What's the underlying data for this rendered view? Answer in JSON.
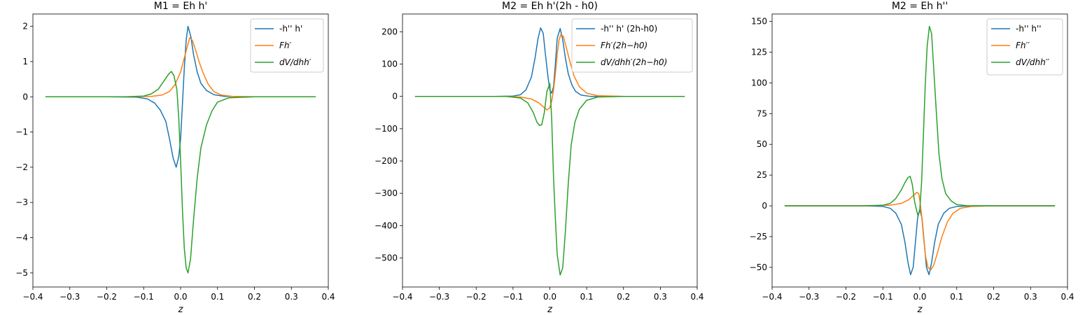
{
  "chart_data": [
    {
      "type": "line",
      "title": "M1 = Eh h'",
      "xlabel": "z",
      "ylabel": "",
      "xlim": [
        -0.4,
        0.4
      ],
      "ylim": [
        -5.4,
        2.35
      ],
      "xticks": [
        -0.4,
        -0.3,
        -0.2,
        -0.1,
        0.0,
        0.1,
        0.2,
        0.3,
        0.4
      ],
      "xtick_labels": [
        "−0.4",
        "−0.3",
        "−0.2",
        "−0.1",
        "0.0",
        "0.1",
        "0.2",
        "0.3",
        "0.4"
      ],
      "yticks": [
        -5,
        -4,
        -3,
        -2,
        -1,
        0,
        1,
        2
      ],
      "ytick_labels": [
        "−5",
        "−4",
        "−3",
        "−2",
        "−1",
        "0",
        "1",
        "2"
      ],
      "legend": "top-right",
      "grid": false,
      "series": [
        {
          "name": "-h'' h'",
          "color": "#1f77b4",
          "points": [
            [
              -0.366,
              0
            ],
            [
              -0.2,
              0
            ],
            [
              -0.12,
              -0.01
            ],
            [
              -0.09,
              -0.06
            ],
            [
              -0.07,
              -0.18
            ],
            [
              -0.055,
              -0.38
            ],
            [
              -0.04,
              -0.7
            ],
            [
              -0.03,
              -1.2
            ],
            [
              -0.02,
              -1.75
            ],
            [
              -0.012,
              -2.0
            ],
            [
              -0.005,
              -1.7
            ],
            [
              0.0,
              -1.2
            ],
            [
              0.005,
              -0.2
            ],
            [
              0.01,
              0.8
            ],
            [
              0.015,
              1.6
            ],
            [
              0.02,
              2.0
            ],
            [
              0.028,
              1.7
            ],
            [
              0.035,
              1.2
            ],
            [
              0.045,
              0.7
            ],
            [
              0.055,
              0.38
            ],
            [
              0.07,
              0.18
            ],
            [
              0.09,
              0.06
            ],
            [
              0.12,
              0.01
            ],
            [
              0.2,
              0
            ],
            [
              0.366,
              0
            ]
          ]
        },
        {
          "name": "Fh′",
          "color": "#ff7f0e",
          "points": [
            [
              -0.366,
              0
            ],
            [
              -0.15,
              0
            ],
            [
              -0.08,
              0.01
            ],
            [
              -0.05,
              0.05
            ],
            [
              -0.03,
              0.15
            ],
            [
              -0.015,
              0.35
            ],
            [
              0.0,
              0.7
            ],
            [
              0.01,
              1.1
            ],
            [
              0.02,
              1.5
            ],
            [
              0.025,
              1.68
            ],
            [
              0.032,
              1.6
            ],
            [
              0.04,
              1.35
            ],
            [
              0.05,
              1.0
            ],
            [
              0.06,
              0.7
            ],
            [
              0.075,
              0.35
            ],
            [
              0.09,
              0.15
            ],
            [
              0.11,
              0.05
            ],
            [
              0.14,
              0.01
            ],
            [
              0.2,
              0
            ],
            [
              0.366,
              0
            ]
          ]
        },
        {
          "name": "dV/dhh′",
          "color": "#2ca02c",
          "points": [
            [
              -0.366,
              0
            ],
            [
              -0.15,
              0
            ],
            [
              -0.1,
              0.02
            ],
            [
              -0.08,
              0.08
            ],
            [
              -0.06,
              0.22
            ],
            [
              -0.045,
              0.45
            ],
            [
              -0.032,
              0.65
            ],
            [
              -0.025,
              0.72
            ],
            [
              -0.018,
              0.6
            ],
            [
              -0.01,
              0.2
            ],
            [
              -0.005,
              -0.6
            ],
            [
              0.0,
              -1.8
            ],
            [
              0.005,
              -3.2
            ],
            [
              0.01,
              -4.3
            ],
            [
              0.015,
              -4.85
            ],
            [
              0.02,
              -5.0
            ],
            [
              0.027,
              -4.6
            ],
            [
              0.035,
              -3.5
            ],
            [
              0.045,
              -2.3
            ],
            [
              0.055,
              -1.45
            ],
            [
              0.07,
              -0.8
            ],
            [
              0.085,
              -0.4
            ],
            [
              0.1,
              -0.15
            ],
            [
              0.13,
              -0.03
            ],
            [
              0.2,
              0
            ],
            [
              0.366,
              0
            ]
          ]
        }
      ]
    },
    {
      "type": "line",
      "title": "M2 = Eh h'(2h - h0)",
      "xlabel": "z",
      "ylabel": "",
      "xlim": [
        -0.4,
        0.4
      ],
      "ylim": [
        -590,
        255
      ],
      "xticks": [
        -0.4,
        -0.3,
        -0.2,
        -0.1,
        0.0,
        0.1,
        0.2,
        0.3,
        0.4
      ],
      "xtick_labels": [
        "−0.4",
        "−0.3",
        "−0.2",
        "−0.1",
        "0.0",
        "0.1",
        "0.2",
        "0.3",
        "0.4"
      ],
      "yticks": [
        -500,
        -400,
        -300,
        -200,
        -100,
        0,
        100,
        200
      ],
      "ytick_labels": [
        "−500",
        "−400",
        "−300",
        "−200",
        "−100",
        "0",
        "100",
        "200"
      ],
      "legend": "top-right",
      "grid": false,
      "series": [
        {
          "name": "-h'' h' (2h-h0)",
          "color": "#1f77b4",
          "points": [
            [
              -0.366,
              0
            ],
            [
              -0.15,
              0
            ],
            [
              -0.1,
              1
            ],
            [
              -0.08,
              5
            ],
            [
              -0.065,
              20
            ],
            [
              -0.05,
              60
            ],
            [
              -0.04,
              120
            ],
            [
              -0.032,
              180
            ],
            [
              -0.025,
              212
            ],
            [
              -0.018,
              195
            ],
            [
              -0.012,
              130
            ],
            [
              -0.005,
              60
            ],
            [
              0.0,
              20
            ],
            [
              0.005,
              10
            ],
            [
              0.01,
              30
            ],
            [
              0.015,
              100
            ],
            [
              0.02,
              180
            ],
            [
              0.028,
              210
            ],
            [
              0.035,
              175
            ],
            [
              0.042,
              120
            ],
            [
              0.05,
              70
            ],
            [
              0.06,
              35
            ],
            [
              0.07,
              15
            ],
            [
              0.085,
              4
            ],
            [
              0.11,
              0
            ],
            [
              0.366,
              0
            ]
          ]
        },
        {
          "name": "Fh′(2h−h0)",
          "color": "#ff7f0e",
          "points": [
            [
              -0.366,
              0
            ],
            [
              -0.12,
              0
            ],
            [
              -0.08,
              -2
            ],
            [
              -0.05,
              -8
            ],
            [
              -0.03,
              -20
            ],
            [
              -0.015,
              -35
            ],
            [
              -0.008,
              -42
            ],
            [
              0.0,
              -35
            ],
            [
              0.005,
              -15
            ],
            [
              0.01,
              20
            ],
            [
              0.015,
              70
            ],
            [
              0.02,
              130
            ],
            [
              0.025,
              175
            ],
            [
              0.03,
              192
            ],
            [
              0.037,
              185
            ],
            [
              0.045,
              150
            ],
            [
              0.055,
              105
            ],
            [
              0.065,
              65
            ],
            [
              0.08,
              30
            ],
            [
              0.1,
              10
            ],
            [
              0.13,
              2
            ],
            [
              0.2,
              0
            ],
            [
              0.366,
              0
            ]
          ]
        },
        {
          "name": "dV/dhh′(2h−h0)",
          "color": "#2ca02c",
          "points": [
            [
              -0.366,
              0
            ],
            [
              -0.12,
              0
            ],
            [
              -0.08,
              -5
            ],
            [
              -0.06,
              -20
            ],
            [
              -0.045,
              -50
            ],
            [
              -0.035,
              -80
            ],
            [
              -0.028,
              -90
            ],
            [
              -0.022,
              -88
            ],
            [
              -0.015,
              -50
            ],
            [
              -0.008,
              15
            ],
            [
              0.0,
              40
            ],
            [
              0.005,
              -70
            ],
            [
              0.01,
              -250
            ],
            [
              0.015,
              -380
            ],
            [
              0.02,
              -490
            ],
            [
              0.028,
              -553
            ],
            [
              0.035,
              -530
            ],
            [
              0.042,
              -420
            ],
            [
              0.05,
              -270
            ],
            [
              0.058,
              -150
            ],
            [
              0.068,
              -80
            ],
            [
              0.08,
              -40
            ],
            [
              0.1,
              -12
            ],
            [
              0.13,
              -2
            ],
            [
              0.2,
              0
            ],
            [
              0.366,
              0
            ]
          ]
        }
      ]
    },
    {
      "type": "line",
      "title": "M2 = Eh h''",
      "xlabel": "z",
      "ylabel": "",
      "xlim": [
        -0.4,
        0.4
      ],
      "ylim": [
        -66,
        156
      ],
      "xticks": [
        -0.4,
        -0.3,
        -0.2,
        -0.1,
        0.0,
        0.1,
        0.2,
        0.3,
        0.4
      ],
      "xtick_labels": [
        "−0.4",
        "−0.3",
        "−0.2",
        "−0.1",
        "0.0",
        "0.1",
        "0.2",
        "0.3",
        "0.4"
      ],
      "yticks": [
        -50,
        -25,
        0,
        25,
        50,
        75,
        100,
        125,
        150
      ],
      "ytick_labels": [
        "−50",
        "−25",
        "0",
        "25",
        "50",
        "75",
        "100",
        "125",
        "150"
      ],
      "legend": "top-right",
      "grid": false,
      "series": [
        {
          "name": "-h'' h''",
          "color": "#1f77b4",
          "points": [
            [
              -0.366,
              0
            ],
            [
              -0.15,
              0
            ],
            [
              -0.1,
              -0.5
            ],
            [
              -0.08,
              -2
            ],
            [
              -0.065,
              -6
            ],
            [
              -0.05,
              -15
            ],
            [
              -0.04,
              -30
            ],
            [
              -0.032,
              -46
            ],
            [
              -0.025,
              -56
            ],
            [
              -0.018,
              -50
            ],
            [
              -0.012,
              -30
            ],
            [
              -0.006,
              -10
            ],
            [
              0.0,
              -3
            ],
            [
              0.006,
              -10
            ],
            [
              0.012,
              -30
            ],
            [
              0.018,
              -50
            ],
            [
              0.025,
              -56
            ],
            [
              0.032,
              -46
            ],
            [
              0.04,
              -30
            ],
            [
              0.05,
              -15
            ],
            [
              0.065,
              -6
            ],
            [
              0.08,
              -2
            ],
            [
              0.1,
              -0.5
            ],
            [
              0.15,
              0
            ],
            [
              0.366,
              0
            ]
          ]
        },
        {
          "name": "Fh′′",
          "color": "#ff7f0e",
          "points": [
            [
              -0.366,
              0
            ],
            [
              -0.15,
              0
            ],
            [
              -0.08,
              0.5
            ],
            [
              -0.05,
              2
            ],
            [
              -0.03,
              5
            ],
            [
              -0.015,
              9
            ],
            [
              -0.008,
              11
            ],
            [
              -0.003,
              10
            ],
            [
              0.0,
              5
            ],
            [
              0.005,
              -8
            ],
            [
              0.01,
              -25
            ],
            [
              0.015,
              -40
            ],
            [
              0.022,
              -50
            ],
            [
              0.03,
              -52
            ],
            [
              0.038,
              -48
            ],
            [
              0.048,
              -38
            ],
            [
              0.06,
              -25
            ],
            [
              0.075,
              -13
            ],
            [
              0.09,
              -6
            ],
            [
              0.11,
              -2
            ],
            [
              0.14,
              -0.5
            ],
            [
              0.2,
              0
            ],
            [
              0.366,
              0
            ]
          ]
        },
        {
          "name": "dV/dhh′′",
          "color": "#2ca02c",
          "points": [
            [
              -0.366,
              0
            ],
            [
              -0.15,
              0
            ],
            [
              -0.1,
              0.5
            ],
            [
              -0.08,
              2
            ],
            [
              -0.065,
              6
            ],
            [
              -0.05,
              13
            ],
            [
              -0.04,
              19
            ],
            [
              -0.032,
              23
            ],
            [
              -0.026,
              24
            ],
            [
              -0.02,
              17
            ],
            [
              -0.015,
              5
            ],
            [
              -0.01,
              -2
            ],
            [
              -0.005,
              -8
            ],
            [
              0.0,
              -3
            ],
            [
              0.005,
              20
            ],
            [
              0.01,
              60
            ],
            [
              0.015,
              100
            ],
            [
              0.02,
              130
            ],
            [
              0.026,
              146
            ],
            [
              0.032,
              140
            ],
            [
              0.038,
              110
            ],
            [
              0.045,
              75
            ],
            [
              0.052,
              42
            ],
            [
              0.06,
              22
            ],
            [
              0.07,
              10
            ],
            [
              0.085,
              4
            ],
            [
              0.1,
              1
            ],
            [
              0.13,
              0
            ],
            [
              0.366,
              0
            ]
          ]
        }
      ]
    }
  ]
}
